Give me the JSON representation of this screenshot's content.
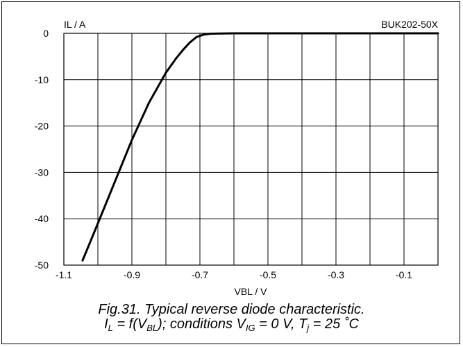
{
  "chart_data": {
    "type": "line",
    "title": "BUK202-50X",
    "xlabel": "VBL / V",
    "ylabel": "IL / A",
    "xlim": [
      -1.1,
      0.0
    ],
    "ylim": [
      -50,
      0
    ],
    "x_ticks": [
      "-1.1",
      "-0.9",
      "-0.7",
      "-0.5",
      "-0.3",
      "-0.1"
    ],
    "y_ticks": [
      "0",
      "-10",
      "-20",
      "-30",
      "-40",
      "-50"
    ],
    "grid": true,
    "series": [
      {
        "x": [
          -1.045,
          -1.0,
          -0.95,
          -0.9,
          -0.85,
          -0.8,
          -0.77,
          -0.75,
          -0.73,
          -0.71,
          -0.69,
          -0.67,
          -0.65,
          -0.6,
          -0.5,
          -0.3,
          -0.1,
          0.0
        ],
        "y": [
          -49,
          -41,
          -32,
          -23,
          -15,
          -8.5,
          -5.4,
          -3.6,
          -2.0,
          -0.8,
          -0.3,
          -0.1,
          -0.05,
          0,
          0,
          0,
          0,
          0
        ]
      }
    ],
    "color": "#000000"
  },
  "caption": {
    "line1": "Fig.31.   Typical reverse diode characteristic.",
    "l2_a": "I",
    "l2_a_sub": "L",
    "l2_b": " = f(V",
    "l2_b_sub": "BL",
    "l2_c": "); conditions V",
    "l2_c_sub": "IG",
    "l2_d": " = 0 V, T",
    "l2_d_sub": "j",
    "l2_e": " = 25 ˚C"
  }
}
